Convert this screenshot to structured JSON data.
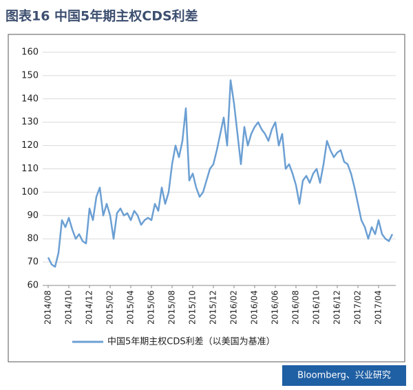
{
  "chart_data": {
    "type": "line",
    "title": "图表16  中国5年期主权CDS利差",
    "source": "Bloomberg、兴业研究",
    "categories": [
      "2014/08",
      null,
      null,
      null,
      null,
      null,
      "2014/10",
      null,
      null,
      null,
      null,
      null,
      "2014/12",
      null,
      null,
      null,
      null,
      null,
      "2015/02",
      null,
      null,
      null,
      null,
      null,
      "2015/04",
      null,
      null,
      null,
      null,
      null,
      "2015/06",
      null,
      null,
      null,
      null,
      null,
      "2015/08",
      null,
      null,
      null,
      null,
      null,
      "2015/10",
      null,
      null,
      null,
      null,
      null,
      "2015/12",
      null,
      null,
      null,
      null,
      null,
      "2016/02",
      null,
      null,
      null,
      null,
      null,
      "2016/04",
      null,
      null,
      null,
      null,
      null,
      "2016/06",
      null,
      null,
      null,
      null,
      null,
      "2016/08",
      null,
      null,
      null,
      null,
      null,
      "2016/10",
      null,
      null,
      null,
      null,
      null,
      "2016/12",
      null,
      null,
      null,
      null,
      null,
      "2017/02",
      null,
      null,
      null,
      null,
      null,
      "2017/04",
      null,
      null,
      null,
      null
    ],
    "series": [
      {
        "name": "中国5年期主权CDS利差（以美国为基准）",
        "color": "#6b9fd3",
        "values": [
          72,
          69,
          68,
          74,
          88,
          85,
          89,
          84,
          80,
          82,
          79,
          78,
          93,
          88,
          98,
          102,
          90,
          95,
          90,
          80,
          91,
          93,
          90,
          91,
          88,
          92,
          90,
          86,
          88,
          89,
          88,
          95,
          92,
          102,
          95,
          100,
          112,
          120,
          115,
          122,
          136,
          105,
          108,
          102,
          98,
          100,
          105,
          110,
          112,
          118,
          125,
          132,
          120,
          148,
          138,
          125,
          112,
          128,
          120,
          125,
          128,
          130,
          127,
          125,
          122,
          127,
          130,
          120,
          125,
          110,
          112,
          108,
          103,
          95,
          105,
          107,
          104,
          108,
          110,
          104,
          112,
          122,
          118,
          115,
          117,
          118,
          113,
          112,
          108,
          102,
          95,
          88,
          85,
          80,
          85,
          82,
          88,
          82,
          80,
          79,
          82
        ]
      }
    ],
    "ylim": [
      60,
      160
    ],
    "yticks": [
      60,
      70,
      80,
      90,
      100,
      110,
      120,
      130,
      140,
      150,
      160
    ],
    "grid": true
  }
}
